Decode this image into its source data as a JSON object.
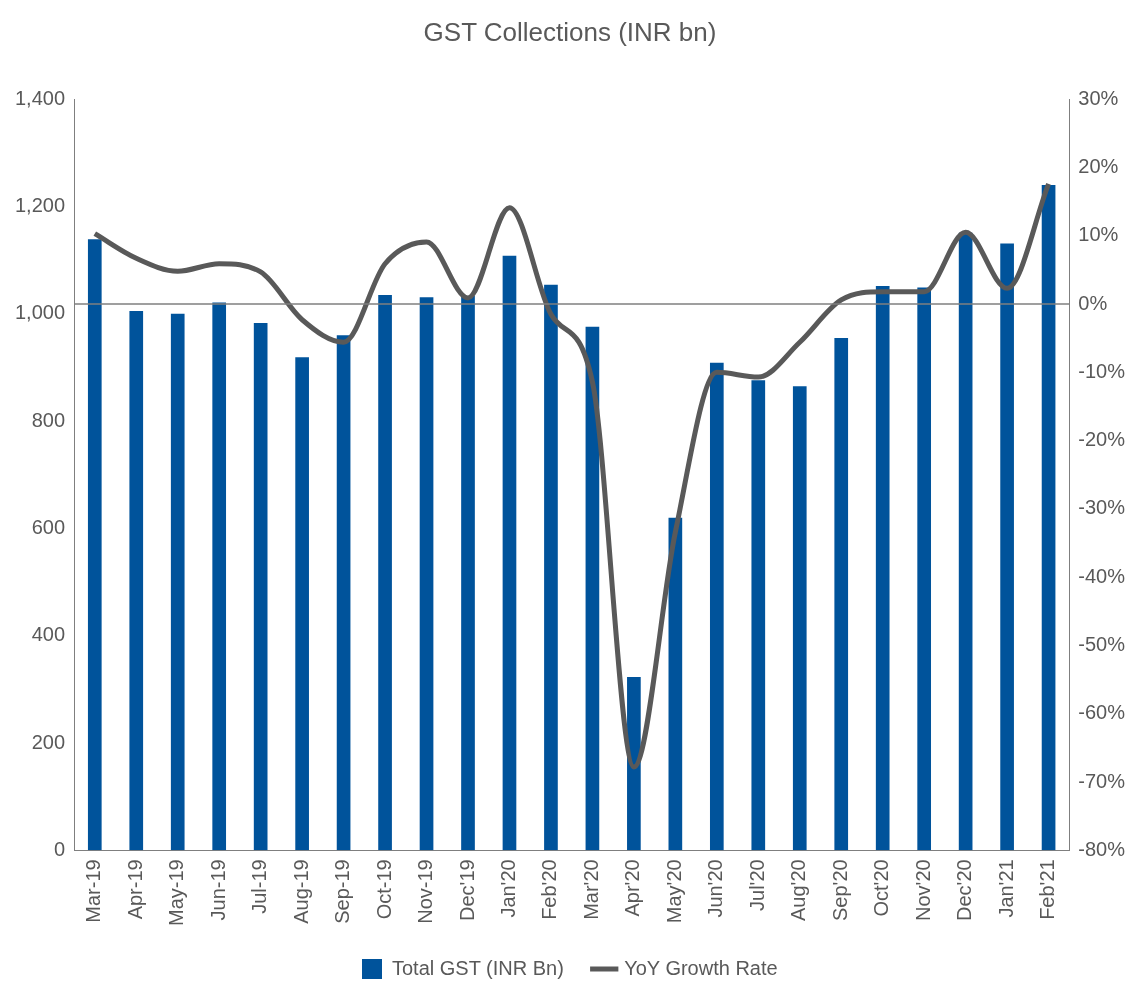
{
  "chart_data": {
    "type": "bar",
    "title": "GST Collections (INR bn)",
    "categories": [
      "Mar-19",
      "Apr-19",
      "May-19",
      "Jun-19",
      "Jul-19",
      "Aug-19",
      "Sep-19",
      "Oct-19",
      "Nov-19",
      "Dec'19",
      "Jan'20",
      "Feb'20",
      "Mar'20",
      "Apr'20",
      "May'20",
      "Jun'20",
      "Jul'20",
      "Aug'20",
      "Sep'20",
      "Oct'20",
      "Nov'20",
      "Dec'20",
      "Jan'21",
      "Feb'21"
    ],
    "series": [
      {
        "name": "Total GST (INR Bn)",
        "color": "#00539b",
        "values": [
          1139,
          1005,
          1000,
          1021,
          983,
          919,
          960,
          1035,
          1031,
          1033,
          1108,
          1054,
          976,
          323,
          620,
          909,
          876,
          865,
          955,
          1052,
          1049,
          1151,
          1131,
          1240
        ]
      },
      {
        "name": "YoY Growth Rate",
        "type": "line",
        "axis": "y2",
        "color": "#595959",
        "values": [
          10.3,
          6.7,
          4.8,
          5.9,
          4.7,
          -2.3,
          -5.6,
          5.9,
          9.1,
          0.9,
          14.1,
          -1.5,
          -11.4,
          -67.8,
          -33.4,
          -10,
          -10.7,
          -5.6,
          0.6,
          1.8,
          1.8,
          10.5,
          2.3,
          17.6
        ]
      }
    ],
    "ylim": [
      0,
      1400
    ],
    "yticks": [
      0,
      200,
      400,
      600,
      800,
      {
        "value": 1000,
        "label": "1,000"
      },
      {
        "value": 1200,
        "label": "1,200"
      },
      {
        "value": 1400,
        "label": "1,400"
      }
    ],
    "y2lim": [
      -80,
      30
    ],
    "y2ticks": [
      {
        "value": -80,
        "label": "-80%"
      },
      {
        "value": -70,
        "label": "-70%"
      },
      {
        "value": -60,
        "label": "-60%"
      },
      {
        "value": -50,
        "label": "-50%"
      },
      {
        "value": -40,
        "label": "-40%"
      },
      {
        "value": -30,
        "label": "-30%"
      },
      {
        "value": -20,
        "label": "-20%"
      },
      {
        "value": -10,
        "label": "-10%"
      },
      {
        "value": 0,
        "label": "0%"
      },
      {
        "value": 10,
        "label": "10%"
      },
      {
        "value": 20,
        "label": "20%"
      },
      {
        "value": 30,
        "label": "30%"
      }
    ],
    "ref_lines": [
      {
        "axis": "y2",
        "value": 0,
        "color": "#7f7f7f"
      }
    ],
    "grid": false,
    "legend": "bottom",
    "marker": "none"
  }
}
